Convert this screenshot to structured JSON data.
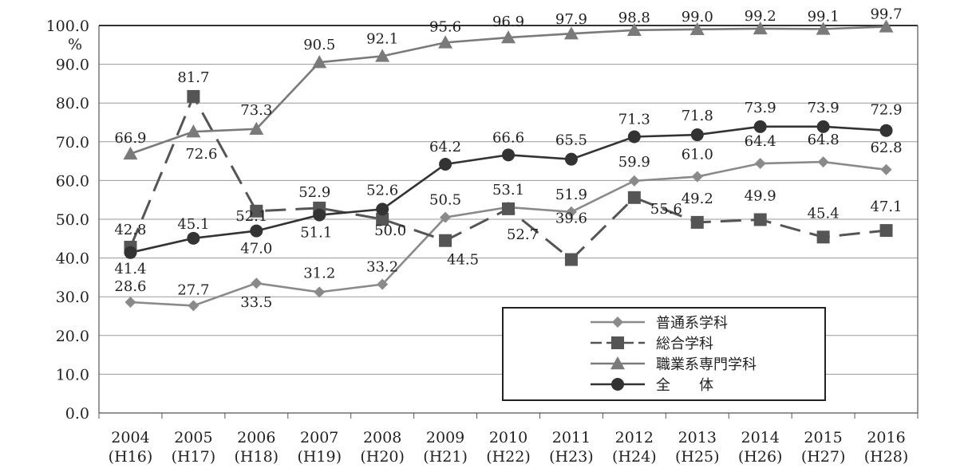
{
  "chart_data": {
    "type": "line",
    "title": "",
    "xlabel": "",
    "ylabel": "",
    "y_unit": "%",
    "ylim": [
      0,
      100
    ],
    "y_ticks": [
      "0.0",
      "10.0",
      "20.0",
      "30.0",
      "40.0",
      "50.0",
      "60.0",
      "70.0",
      "80.0",
      "90.0",
      "100.0"
    ],
    "grid": true,
    "legend_position": "bottom-right",
    "x": [
      "2004",
      "2005",
      "2006",
      "2007",
      "2008",
      "2009",
      "2010",
      "2011",
      "2012",
      "2013",
      "2014",
      "2015",
      "2016"
    ],
    "x_sublabels": [
      "(H16)",
      "(H17)",
      "(H18)",
      "(H19)",
      "(H20)",
      "(H21)",
      "(H22)",
      "(H23)",
      "(H24)",
      "(H25)",
      "(H26)",
      "(H27)",
      "(H28)"
    ],
    "series": [
      {
        "name": "普通系学科",
        "marker": "diamond",
        "line": "solid",
        "color": "#8a8a8a",
        "values": [
          28.6,
          27.7,
          33.5,
          31.2,
          33.2,
          50.5,
          53.1,
          51.9,
          59.9,
          61.0,
          64.4,
          64.8,
          62.8
        ],
        "labels": [
          "28.6",
          "27.7",
          "33.5",
          "31.2",
          "33.2",
          "50.5",
          "53.1",
          "51.9",
          "59.9",
          "61.0",
          "64.4",
          "64.8",
          "62.8"
        ]
      },
      {
        "name": "総合学科",
        "marker": "square",
        "line": "dashed",
        "color": "#555555",
        "values": [
          42.8,
          81.7,
          52.1,
          52.9,
          50.0,
          44.5,
          52.7,
          39.6,
          55.6,
          49.2,
          49.9,
          45.4,
          47.1
        ],
        "labels": [
          "42.8",
          "81.7",
          "52.1",
          "52.9",
          "50.0",
          "44.5",
          "52.7",
          "39.6",
          "55.6",
          "49.2",
          "49.9",
          "45.4",
          "47.1"
        ]
      },
      {
        "name": "職業系専門学科",
        "marker": "triangle",
        "line": "solid",
        "color": "#7a7a7a",
        "values": [
          66.9,
          72.6,
          73.3,
          90.5,
          92.1,
          95.6,
          96.9,
          97.9,
          98.8,
          99.0,
          99.2,
          99.1,
          99.7
        ],
        "labels": [
          "66.9",
          "72.6",
          "73.3",
          "90.5",
          "92.1",
          "95.6",
          "96.9",
          "97.9",
          "98.8",
          "99.0",
          "99.2",
          "99.1",
          "99.7"
        ]
      },
      {
        "name": "全　　体",
        "marker": "circle",
        "line": "solid",
        "color": "#333333",
        "values": [
          41.4,
          45.1,
          47.0,
          51.1,
          52.6,
          64.2,
          66.6,
          65.5,
          71.3,
          71.8,
          73.9,
          73.9,
          72.9
        ],
        "labels": [
          "41.4",
          "45.1",
          "47.0",
          "51.1",
          "52.6",
          "64.2",
          "66.6",
          "65.5",
          "71.3",
          "71.8",
          "73.9",
          "73.9",
          "72.9"
        ]
      }
    ]
  }
}
